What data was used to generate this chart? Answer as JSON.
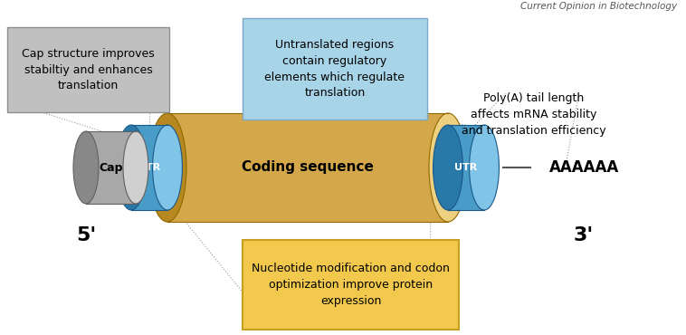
{
  "bg_color": "#ffffff",
  "five_prime_label": "5'",
  "three_prime_label": "3'",
  "polya_label": "AAAAAA",
  "cap_label": "Cap",
  "utr_label": "UTR",
  "coding_label": "Coding sequence",
  "top_box_text": "Nucleotide modification and codon\noptimization improve protein\nexpression",
  "top_box_color": "#F2C94C",
  "top_box_edge": "#C8A020",
  "bottom_left_box_text": "Cap structure improves\nstabiltiy and enhances\ntranslation",
  "bottom_left_box_color": "#C0C0C0",
  "bottom_left_box_edge": "#909090",
  "bottom_mid_box_text": "Untranslated regions\ncontain regulatory\nelements which regulate\ntranslation",
  "bottom_mid_box_color": "#A8D4E8",
  "bottom_mid_box_edge": "#7AAAC8",
  "bottom_right_text": "Poly(A) tail length\naffects mRNA stability\nand translation efficiency",
  "journal_text": "Current Opinion in Biotechnology",
  "cap_body": "#A8A8A8",
  "cap_face_light": "#D0D0D0",
  "cap_face_dark": "#888888",
  "cap_outline": "#606060",
  "utr_body": "#4A9CC8",
  "utr_face_light": "#80C4E8",
  "utr_face_dark": "#2878A8",
  "utr_outline": "#1A5888",
  "cod_body": "#D4A84A",
  "cod_face_light": "#EDD080",
  "cod_face_dark": "#B88820",
  "cod_outline": "#906800",
  "dash_color": "#999999",
  "connector_color": "#555555"
}
